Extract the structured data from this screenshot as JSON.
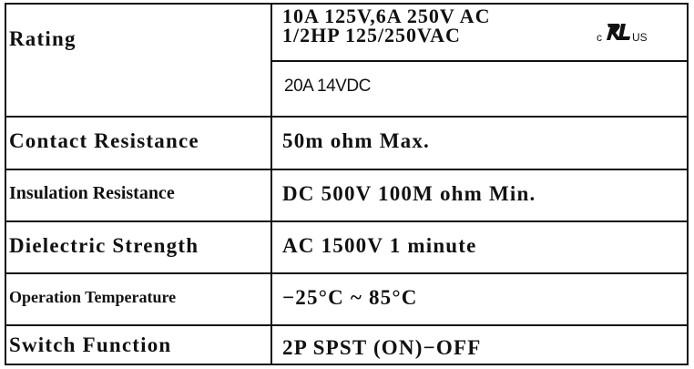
{
  "table": {
    "rating": {
      "label": "Rating",
      "lines": [
        "10A 125V,6A 250V AC",
        "1/2HP 125/250VAC"
      ],
      "mark": {
        "prefix": "c",
        "suffix": "us"
      },
      "dc": "20A 14VDC"
    },
    "rows": [
      {
        "label": "Contact Resistance",
        "value": "50m ohm Max."
      },
      {
        "label": "Insulation Resistance",
        "value": "DC 500V 100M ohm Min."
      },
      {
        "label": "Dielectric Strength",
        "value": "AC 1500V 1 minute"
      },
      {
        "label": "Operation Temperature",
        "value": "−25°C ~ 85°C"
      },
      {
        "label": "Switch Function",
        "value": "2P SPST (ON)−OFF"
      }
    ]
  }
}
